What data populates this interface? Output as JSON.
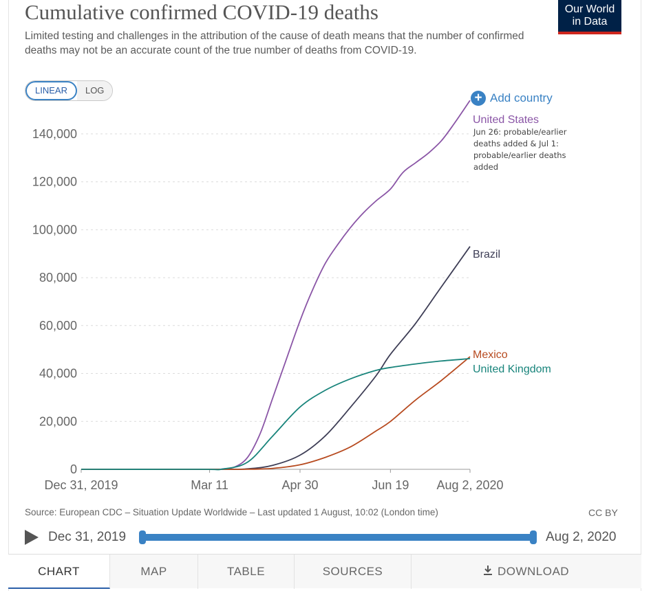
{
  "header": {
    "title": "Cumulative confirmed COVID-19 deaths",
    "subtitle": "Limited testing and challenges in the attribution of the cause of death means that the number of confirmed deaths may not be an accurate count of the true number of deaths from COVID-19.",
    "logo_line1": "Our World",
    "logo_line2": "in Data"
  },
  "controls": {
    "scale_options": [
      "LINEAR",
      "LOG"
    ],
    "active_scale": "LINEAR",
    "add_country_label": "Add country"
  },
  "chart_data": {
    "type": "line",
    "title": "Cumulative confirmed COVID-19 deaths",
    "xlabel": "",
    "ylabel": "",
    "x_ticks": [
      "Dec 31, 2019",
      "Mar 11",
      "Apr 30",
      "Jun 19",
      "Aug 2, 2020"
    ],
    "y_ticks": [
      "0",
      "20,000",
      "40,000",
      "60,000",
      "80,000",
      "100,000",
      "120,000",
      "140,000"
    ],
    "y_tick_values": [
      0,
      20000,
      40000,
      60000,
      80000,
      100000,
      120000,
      140000
    ],
    "ylim": [
      0,
      150000
    ],
    "xlim": [
      "2019-12-31",
      "2020-08-02"
    ],
    "grid": "horizontal dashed",
    "series": [
      {
        "name": "United States",
        "color": "#8a55a6",
        "annotation": "Jun 26: probable/earlier deaths added & Jul 1: probable/earlier deaths added",
        "points": [
          [
            "2019-12-31",
            0
          ],
          [
            "2020-03-11",
            0
          ],
          [
            "2020-03-18",
            150
          ],
          [
            "2020-03-25",
            1000
          ],
          [
            "2020-04-01",
            5000
          ],
          [
            "2020-04-08",
            15000
          ],
          [
            "2020-04-15",
            30000
          ],
          [
            "2020-04-22",
            45000
          ],
          [
            "2020-04-30",
            62000
          ],
          [
            "2020-05-07",
            75000
          ],
          [
            "2020-05-14",
            86000
          ],
          [
            "2020-05-21",
            94000
          ],
          [
            "2020-05-28",
            101000
          ],
          [
            "2020-06-04",
            107000
          ],
          [
            "2020-06-11",
            112000
          ],
          [
            "2020-06-19",
            117000
          ],
          [
            "2020-06-26",
            124000
          ],
          [
            "2020-07-03",
            128000
          ],
          [
            "2020-07-10",
            132000
          ],
          [
            "2020-07-17",
            137000
          ],
          [
            "2020-07-24",
            144000
          ],
          [
            "2020-08-02",
            154000
          ]
        ]
      },
      {
        "name": "Brazil",
        "color": "#3d3d55",
        "points": [
          [
            "2019-12-31",
            0
          ],
          [
            "2020-03-16",
            0
          ],
          [
            "2020-04-01",
            200
          ],
          [
            "2020-04-15",
            1700
          ],
          [
            "2020-04-30",
            5900
          ],
          [
            "2020-05-14",
            14000
          ],
          [
            "2020-05-28",
            26000
          ],
          [
            "2020-06-11",
            39000
          ],
          [
            "2020-06-19",
            48000
          ],
          [
            "2020-07-03",
            61000
          ],
          [
            "2020-07-17",
            76000
          ],
          [
            "2020-08-02",
            93000
          ]
        ]
      },
      {
        "name": "Mexico",
        "color": "#b74a1f",
        "points": [
          [
            "2019-12-31",
            0
          ],
          [
            "2020-03-18",
            0
          ],
          [
            "2020-04-01",
            30
          ],
          [
            "2020-04-15",
            400
          ],
          [
            "2020-04-30",
            1900
          ],
          [
            "2020-05-14",
            5000
          ],
          [
            "2020-05-28",
            9400
          ],
          [
            "2020-06-11",
            16000
          ],
          [
            "2020-06-19",
            20000
          ],
          [
            "2020-07-03",
            29000
          ],
          [
            "2020-07-17",
            37000
          ],
          [
            "2020-08-02",
            47000
          ]
        ]
      },
      {
        "name": "United Kingdom",
        "color": "#18847b",
        "points": [
          [
            "2019-12-31",
            0
          ],
          [
            "2020-03-06",
            0
          ],
          [
            "2020-03-18",
            100
          ],
          [
            "2020-04-01",
            3000
          ],
          [
            "2020-04-15",
            14000
          ],
          [
            "2020-04-30",
            26000
          ],
          [
            "2020-05-14",
            33000
          ],
          [
            "2020-05-28",
            37800
          ],
          [
            "2020-06-11",
            41300
          ],
          [
            "2020-06-19",
            42500
          ],
          [
            "2020-07-03",
            44000
          ],
          [
            "2020-07-17",
            45200
          ],
          [
            "2020-08-02",
            46200
          ]
        ]
      }
    ]
  },
  "footer": {
    "source": "Source: European CDC – Situation Update Worldwide – Last updated 1 August, 10:02 (London time)",
    "license": "CC BY",
    "timeline_start": "Dec 31, 2019",
    "timeline_end": "Aug 2, 2020"
  },
  "tabs": [
    {
      "label": "CHART"
    },
    {
      "label": "MAP"
    },
    {
      "label": "TABLE"
    },
    {
      "label": "SOURCES"
    },
    {
      "label": "DOWNLOAD"
    }
  ],
  "icons": {
    "play": "play-icon",
    "add": "plus-circle-icon",
    "download": "download-icon"
  },
  "colors": {
    "accent": "#3a82c4",
    "logo_bg": "#002147",
    "logo_stripe": "#ce261e"
  }
}
